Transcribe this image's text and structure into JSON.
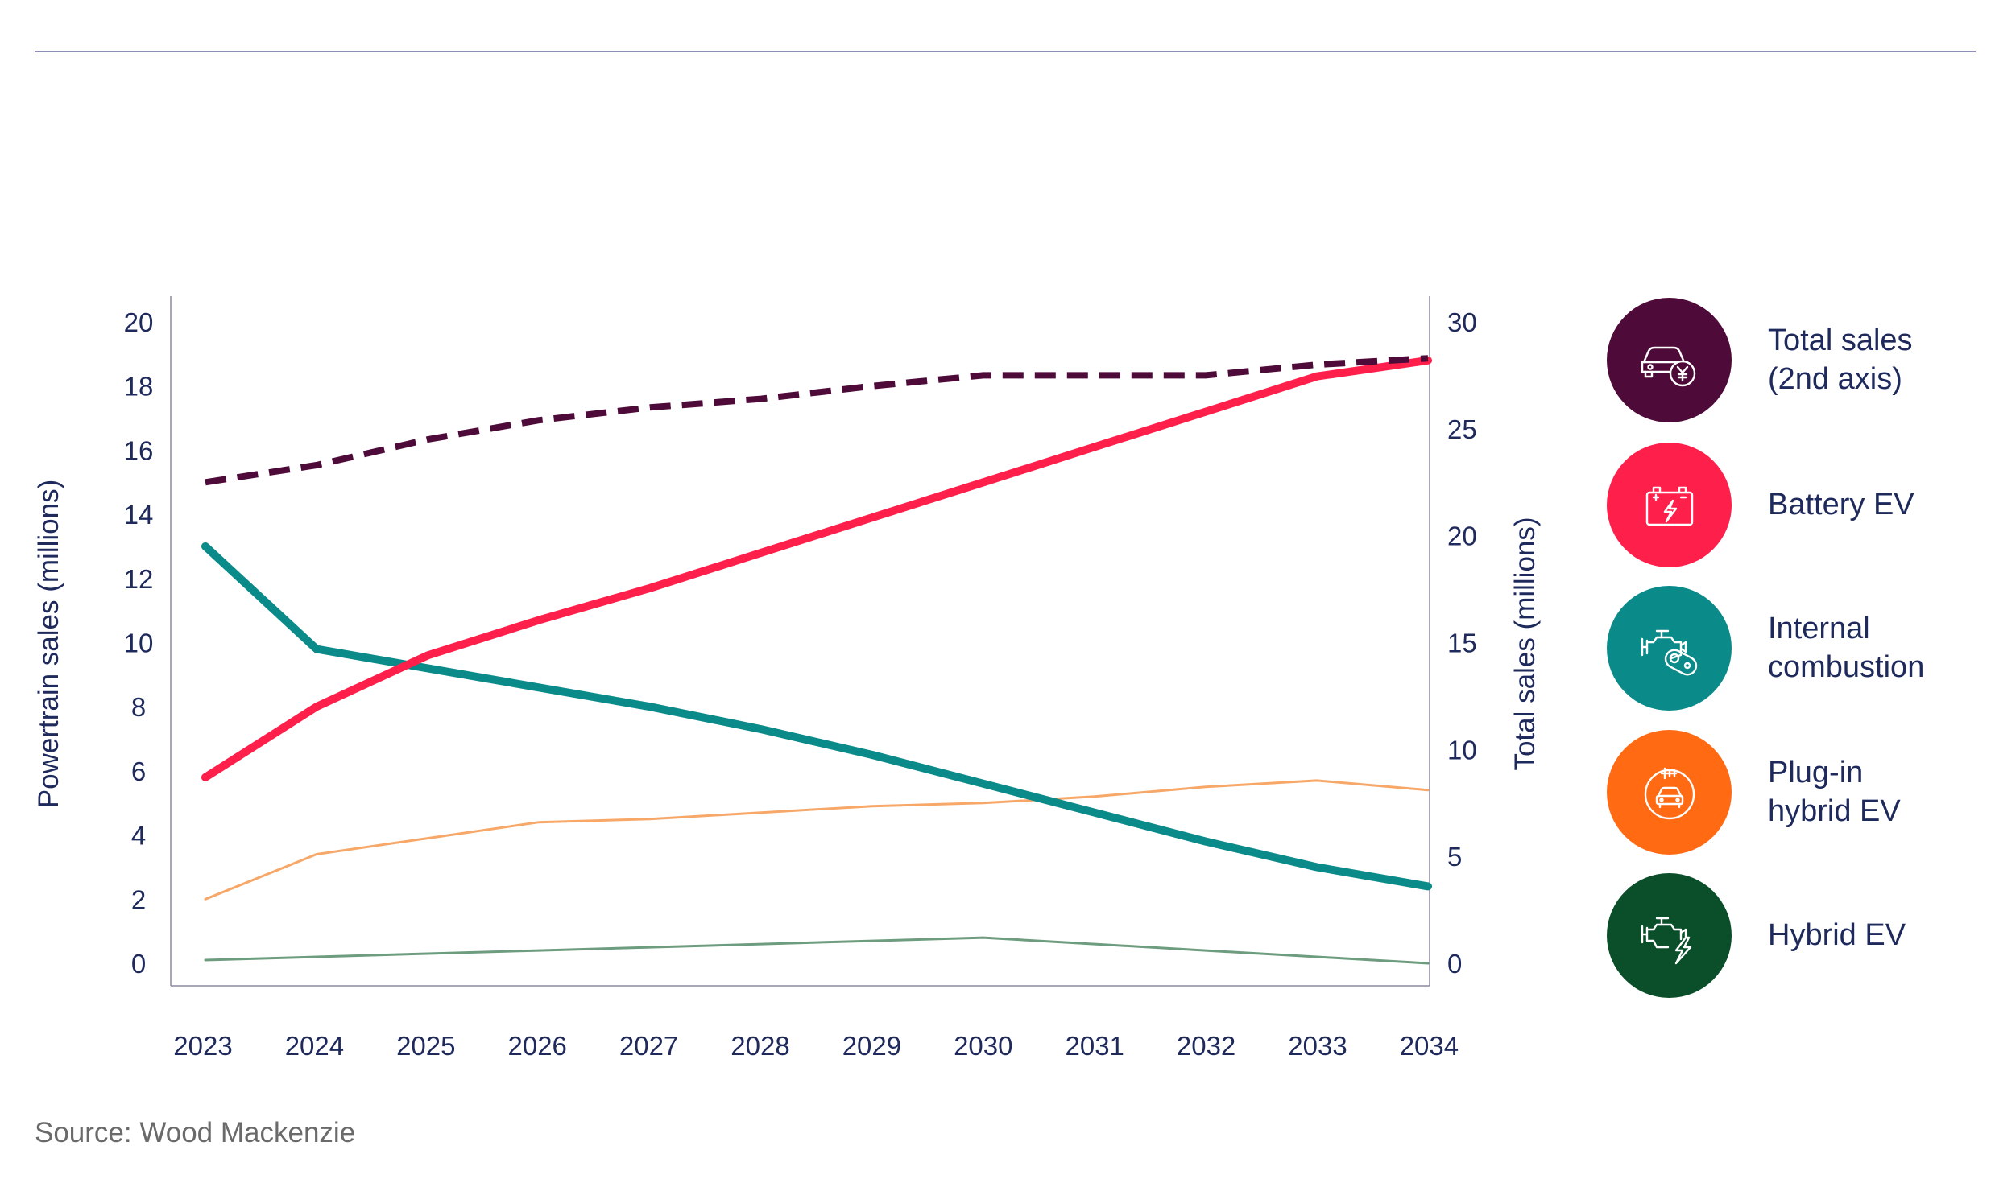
{
  "source": "Source: Wood Mackenzie",
  "legend": [
    {
      "label": "Total sales\n(2nd axis)",
      "color": "#4e0a38",
      "icon": "car-yen-icon"
    },
    {
      "label": "Battery EV",
      "color": "#ff1f4b",
      "icon": "battery-icon"
    },
    {
      "label": "Internal\ncombustion",
      "color": "#0b8a8a",
      "icon": "engine-icon"
    },
    {
      "label": "Plug-in\nhybrid EV",
      "color": "#ff6a13",
      "icon": "plug-car-icon"
    },
    {
      "label": "Hybrid EV",
      "color": "#0a4f2a",
      "icon": "engine-bolt-icon"
    }
  ],
  "chart_data": {
    "type": "line",
    "ylabel": "Powertrain sales (millions)",
    "y2label": "Total sales (millions)",
    "x": [
      "2023",
      "2024",
      "2025",
      "2026",
      "2027",
      "2028",
      "2029",
      "2030",
      "2031",
      "2032",
      "2033",
      "2034"
    ],
    "ylim": [
      0,
      20
    ],
    "y_ticks": [
      0,
      2,
      4,
      6,
      8,
      10,
      12,
      14,
      16,
      18,
      20
    ],
    "y2lim": [
      0,
      30
    ],
    "y2_ticks": [
      0,
      5,
      10,
      15,
      20,
      25,
      30
    ],
    "series": [
      {
        "name": "Total sales (2nd axis)",
        "axis": "y2",
        "style": "dashed",
        "color": "#4e0a38",
        "values": [
          22.5,
          23.3,
          24.5,
          25.4,
          26.0,
          26.4,
          27.0,
          27.5,
          27.5,
          27.5,
          28.0,
          28.3
        ]
      },
      {
        "name": "Battery EV",
        "axis": "y",
        "style": "solid",
        "color": "#ff1f4b",
        "values": [
          5.8,
          8.0,
          9.6,
          10.7,
          11.7,
          12.8,
          13.9,
          15.0,
          16.1,
          17.2,
          18.3,
          18.8
        ]
      },
      {
        "name": "Internal combustion",
        "axis": "y",
        "style": "solid",
        "color": "#0b8a8a",
        "values": [
          13.0,
          9.8,
          9.2,
          8.6,
          8.0,
          7.3,
          6.5,
          5.6,
          4.7,
          3.8,
          3.0,
          2.4
        ]
      },
      {
        "name": "Plug-in hybrid EV",
        "axis": "y",
        "style": "thin",
        "color": "#f7a868",
        "values": [
          2.0,
          3.4,
          3.9,
          4.4,
          4.5,
          4.7,
          4.9,
          5.0,
          5.2,
          5.5,
          5.7,
          5.4
        ]
      },
      {
        "name": "Hybrid EV",
        "axis": "y",
        "style": "thin",
        "color": "#6d9c7e",
        "values": [
          0.1,
          0.2,
          0.3,
          0.4,
          0.5,
          0.6,
          0.7,
          0.8,
          0.6,
          0.4,
          0.2,
          0.0
        ]
      }
    ]
  }
}
